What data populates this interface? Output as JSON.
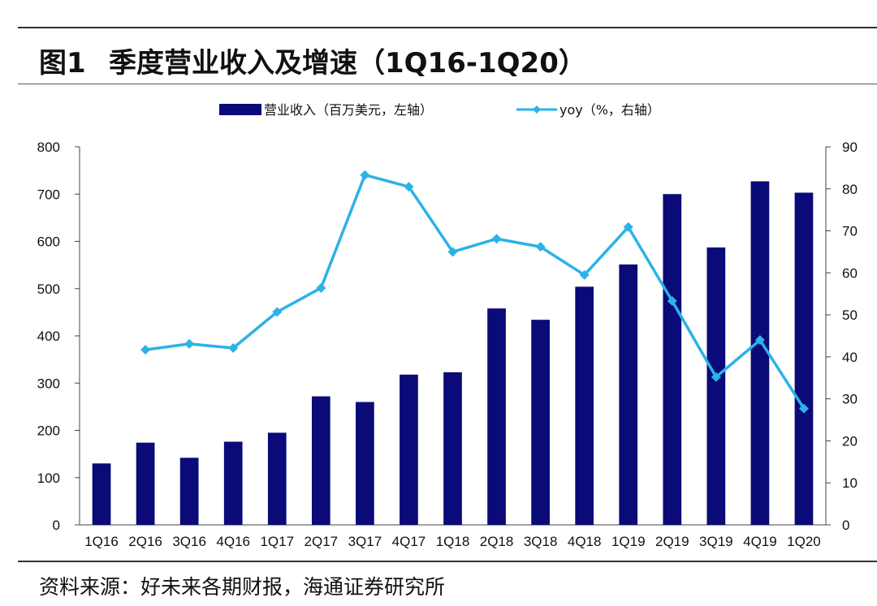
{
  "figure": {
    "label": "图1",
    "title": "季度营业收入及增速（1Q16-1Q20）",
    "source": "资料来源：好未来各期财报，海通证券研究所"
  },
  "colors": {
    "bar": "#0a0a78",
    "line": "#2bb2e6",
    "axis": "#444444"
  },
  "chart_data": {
    "type": "bar",
    "categories": [
      "1Q16",
      "2Q16",
      "3Q16",
      "4Q16",
      "1Q17",
      "2Q17",
      "3Q17",
      "4Q17",
      "1Q18",
      "2Q18",
      "3Q18",
      "4Q18",
      "1Q19",
      "2Q19",
      "3Q19",
      "4Q19",
      "1Q20"
    ],
    "series": [
      {
        "name": "营业收入（百万美元，左轴）",
        "type": "bar",
        "axis": "left",
        "values": [
          130,
          174,
          142,
          176,
          195,
          272,
          260,
          318,
          323,
          458,
          434,
          504,
          551,
          700,
          587,
          727,
          703
        ]
      },
      {
        "name": "yoy（%，右轴）",
        "type": "line",
        "axis": "right",
        "values": [
          null,
          41.7,
          43.1,
          42.1,
          50.7,
          56.4,
          83.3,
          80.5,
          65.0,
          68.1,
          66.2,
          59.5,
          70.9,
          53.3,
          35.2,
          44.0,
          27.7
        ]
      }
    ],
    "y_left": {
      "lim": [
        0,
        800
      ],
      "ticks": [
        0,
        100,
        200,
        300,
        400,
        500,
        600,
        700,
        800
      ]
    },
    "y_right": {
      "lim": [
        0,
        90
      ],
      "ticks": [
        0,
        10,
        20,
        30,
        40,
        50,
        60,
        70,
        80,
        90
      ]
    },
    "legend_position": "top-center",
    "grid": false
  }
}
